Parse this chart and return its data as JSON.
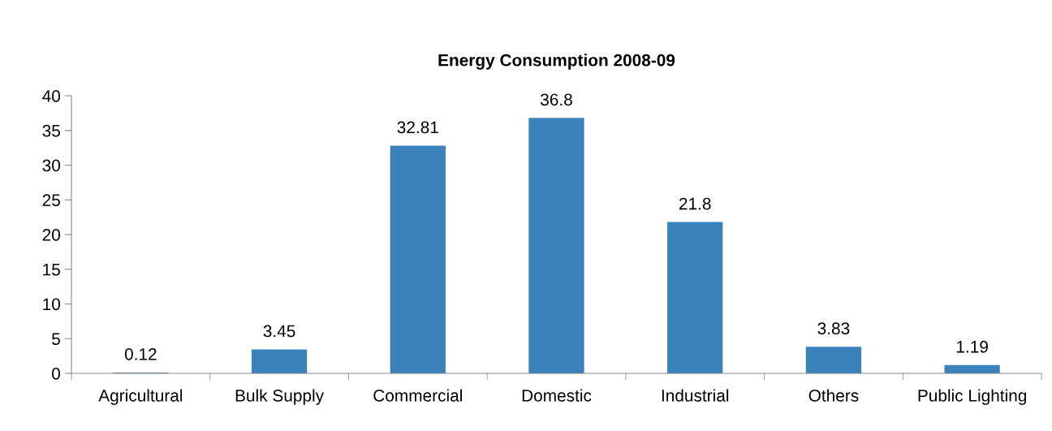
{
  "chart_data": {
    "type": "bar",
    "title": "Energy Consumption 2008-09",
    "categories": [
      "Agricultural",
      "Bulk Supply",
      "Commercial",
      "Domestic",
      "Industrial",
      "Others",
      "Public Lighting"
    ],
    "values": [
      0.12,
      3.45,
      32.81,
      36.8,
      21.8,
      3.83,
      1.19
    ],
    "color": "#3a82bc",
    "ylim": [
      0,
      40
    ],
    "yticks": [
      0,
      5,
      10,
      15,
      20,
      25,
      30,
      35,
      40
    ],
    "data_labels": true,
    "grid": false,
    "legend": false
  }
}
